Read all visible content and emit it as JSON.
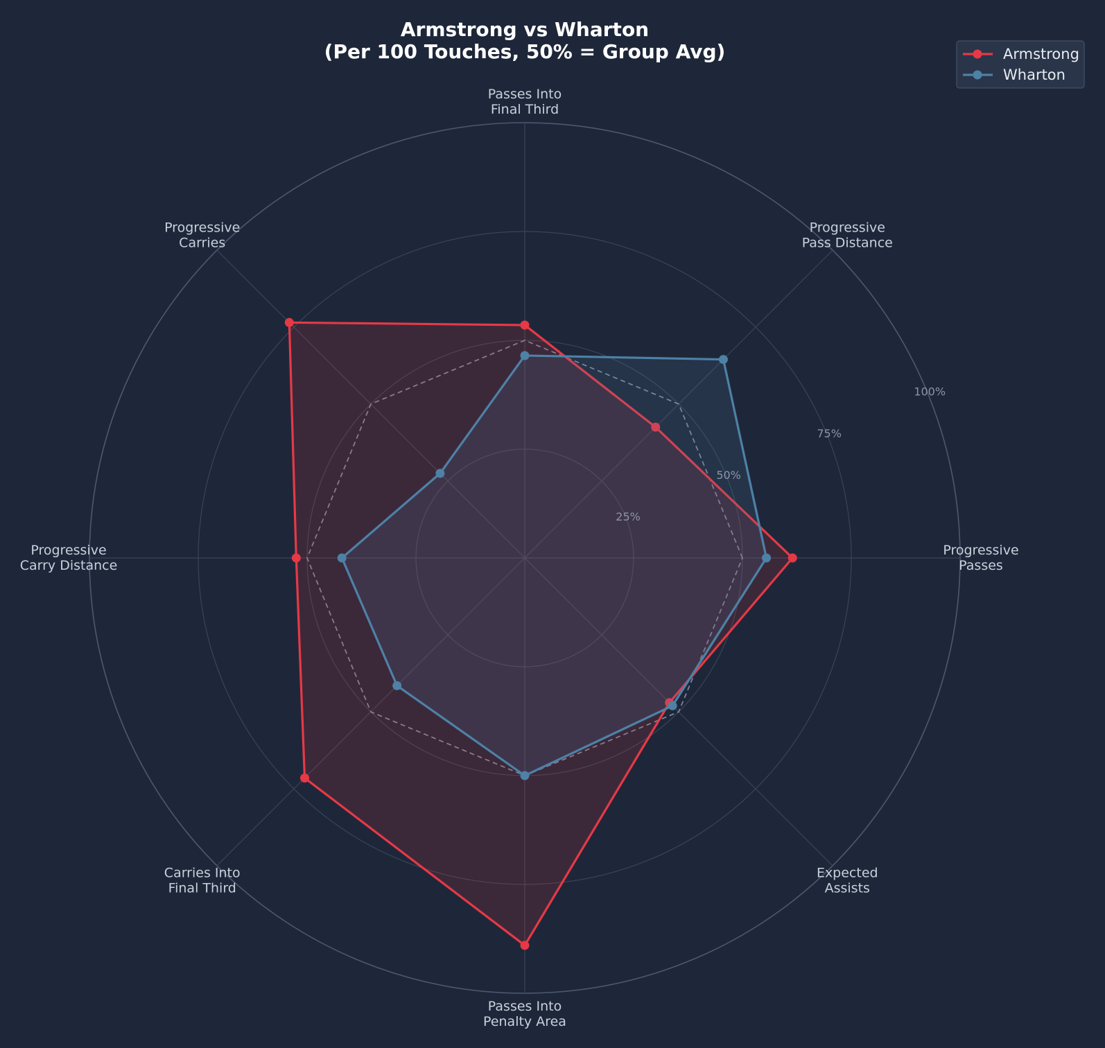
{
  "chart_data": {
    "type": "radar",
    "title_lines": [
      "Armstrong vs Wharton",
      "(Per 100 Touches, 50% = Group Avg)"
    ],
    "axes": [
      [
        "Progressive",
        "Passes"
      ],
      [
        "Progressive",
        "Pass Distance"
      ],
      [
        "Passes Into",
        "Final Third"
      ],
      [
        "Progressive",
        "Carries"
      ],
      [
        "Progressive",
        "Carry Distance"
      ],
      [
        "Carries Into",
        "Final Third"
      ],
      [
        "Passes Into",
        "Penalty Area"
      ],
      [
        "Expected",
        "Assists"
      ]
    ],
    "rlim": [
      0,
      100
    ],
    "ticks": [
      25,
      50,
      75,
      100
    ],
    "tick_labels": [
      "25%",
      "50%",
      "75%",
      "100%"
    ],
    "reference": {
      "value": 50,
      "style": "dashed"
    },
    "series": [
      {
        "name": "Armstrong",
        "color": "#e63946",
        "values": [
          61.5,
          42.5,
          53.5,
          76.5,
          52.5,
          71.5,
          89,
          47
        ]
      },
      {
        "name": "Wharton",
        "color": "#4e81a6",
        "values": [
          55.5,
          64.5,
          46.5,
          27.5,
          42,
          41.5,
          50,
          48
        ]
      }
    ],
    "legend": {
      "position": "top-right"
    },
    "grid": true
  }
}
